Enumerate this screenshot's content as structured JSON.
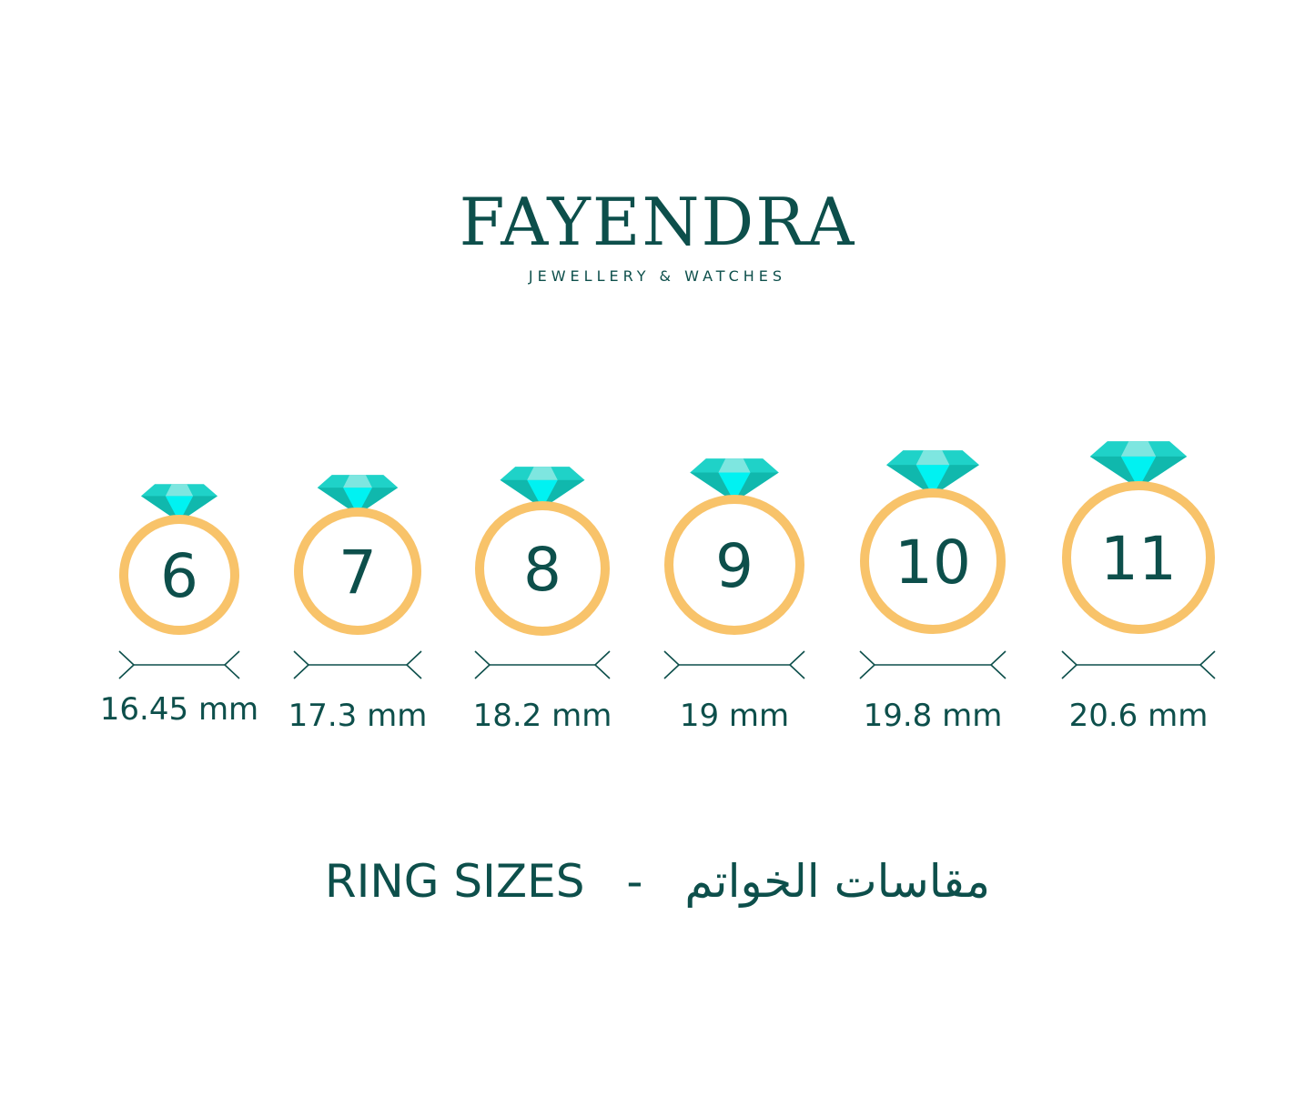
{
  "brand": {
    "name": "FAYENDRA",
    "tagline": "JEWELLERY & WATCHES"
  },
  "colors": {
    "text": "#0d4f4b",
    "ring": "#f8c36a",
    "gem_light": "#7ee6e0",
    "gem_mid": "#1fd2c8",
    "gem_dark": "#10b8ad",
    "gem_bright": "#00f2f2"
  },
  "rings": [
    {
      "size": "6",
      "diameter": "16.45 mm"
    },
    {
      "size": "7",
      "diameter": "17.3 mm"
    },
    {
      "size": "8",
      "diameter": "18.2 mm"
    },
    {
      "size": "9",
      "diameter": "19 mm"
    },
    {
      "size": "10",
      "diameter": "19.8 mm"
    },
    {
      "size": "11",
      "diameter": "20.6 mm"
    }
  ],
  "footer": {
    "title_en": "RING SIZES",
    "separator": "-",
    "title_ar": "مقاسات الخواتم"
  }
}
